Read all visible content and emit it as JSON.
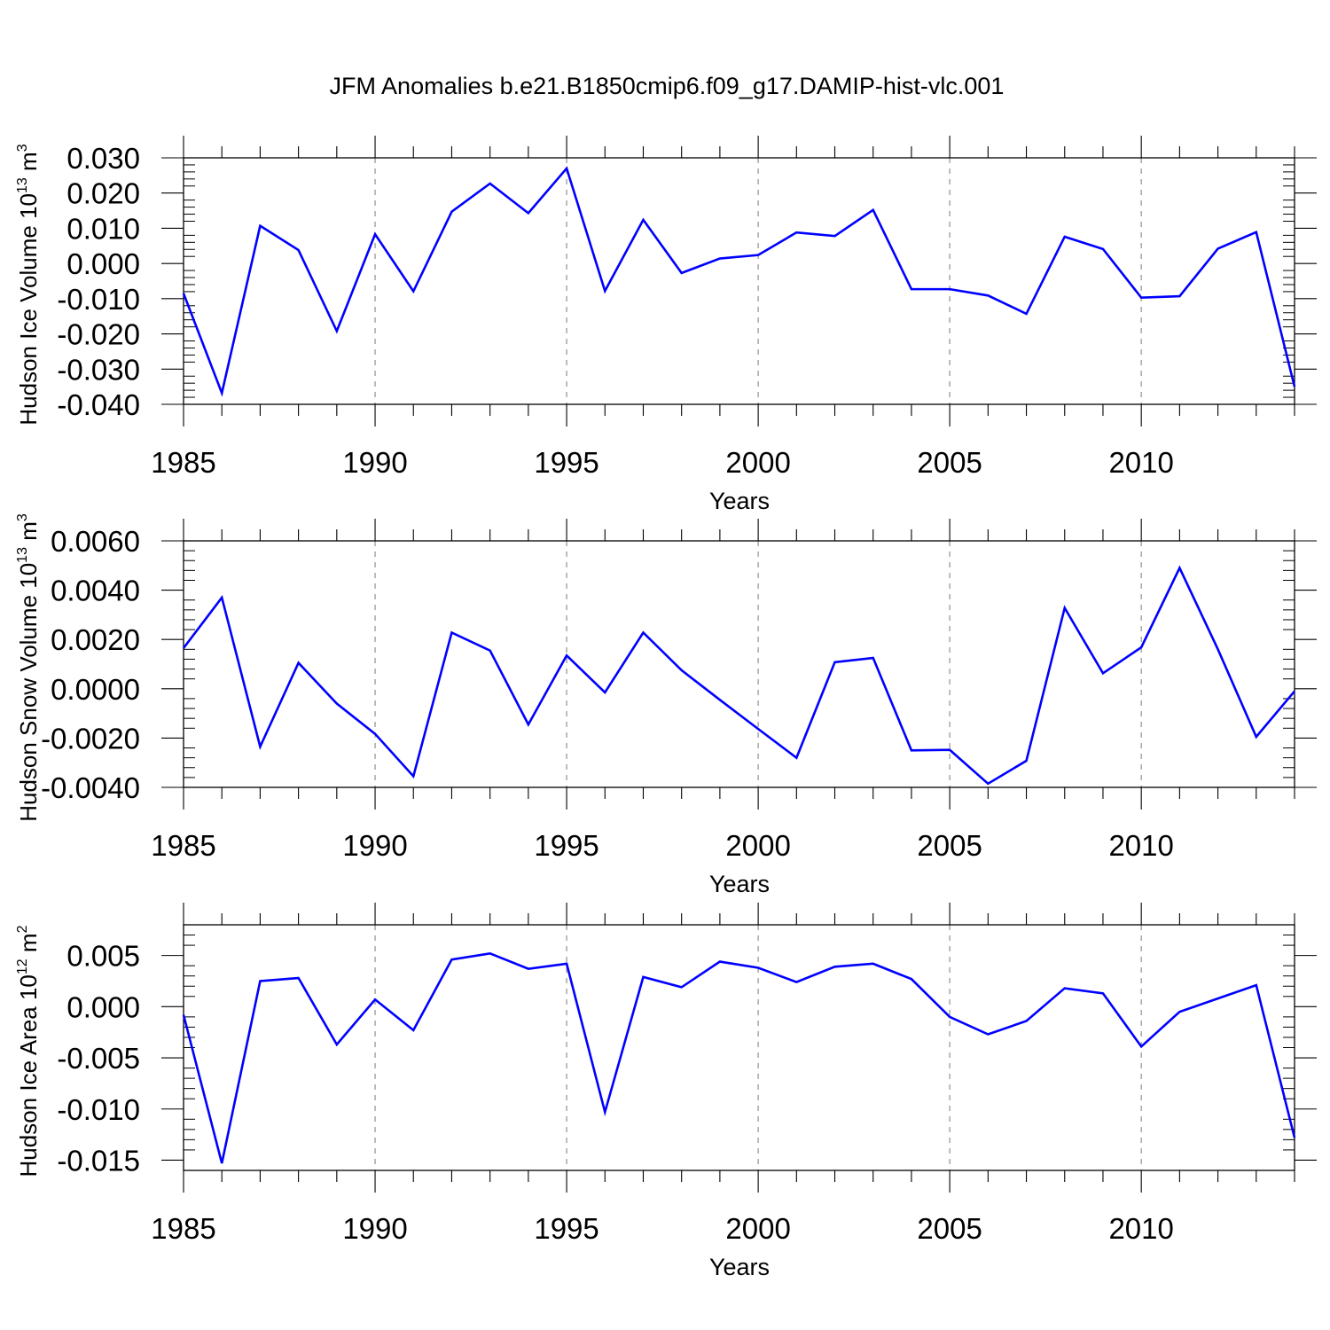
{
  "title": "JFM Anomalies b.e21.B1850cmip6.f09_g17.DAMIP-hist-vlc.001",
  "chart_data": [
    {
      "type": "line",
      "ylabel": {
        "prefix": "Hudson Ice Volume 10",
        "exponent": "13",
        "unit": " m",
        "unit_exponent": "3"
      },
      "xlabel": "Years",
      "xlim": [
        1985,
        2014
      ],
      "ylim": [
        -0.04,
        0.03
      ],
      "yticks": [
        -0.04,
        -0.03,
        -0.02,
        -0.01,
        0.0,
        0.01,
        0.02,
        0.03
      ],
      "ytick_labels": [
        "-0.040",
        "-0.030",
        "-0.020",
        "-0.010",
        "0.000",
        "0.010",
        "0.020",
        "0.030"
      ],
      "xticks": [
        1985,
        1990,
        1995,
        2000,
        2005,
        2010
      ],
      "xtick_labels": [
        "1985",
        "1990",
        "1995",
        "2000",
        "2005",
        "2010"
      ],
      "grid": "vertical dashed at major x ticks",
      "color": "#0000ff",
      "x": [
        1985,
        1986,
        1987,
        1988,
        1989,
        1990,
        1991,
        1992,
        1993,
        1994,
        1995,
        1996,
        1997,
        1998,
        1999,
        2000,
        2001,
        2002,
        2003,
        2004,
        2005,
        2006,
        2007,
        2008,
        2009,
        2010,
        2011,
        2012,
        2013,
        2014
      ],
      "values": [
        -0.0085,
        -0.0368,
        0.0107,
        0.0038,
        -0.0192,
        0.0083,
        -0.0079,
        0.0147,
        0.0227,
        0.0143,
        0.027,
        -0.0078,
        0.0124,
        -0.0027,
        0.0014,
        0.0024,
        0.0088,
        0.0078,
        0.0152,
        -0.0073,
        -0.0073,
        -0.0091,
        -0.0143,
        0.0076,
        0.0041,
        -0.0097,
        -0.0093,
        0.0042,
        0.0089,
        -0.035
      ]
    },
    {
      "type": "line",
      "ylabel": {
        "prefix": "Hudson Snow Volume 10",
        "exponent": "13",
        "unit": " m",
        "unit_exponent": "3"
      },
      "xlabel": "Years",
      "xlim": [
        1985,
        2014
      ],
      "ylim": [
        -0.004,
        0.006
      ],
      "yticks": [
        -0.004,
        -0.002,
        0.0,
        0.002,
        0.004,
        0.006
      ],
      "ytick_labels": [
        "-0.0040",
        "-0.0020",
        "0.0000",
        "0.0020",
        "0.0040",
        "0.0060"
      ],
      "xticks": [
        1985,
        1990,
        1995,
        2000,
        2005,
        2010
      ],
      "xtick_labels": [
        "1985",
        "1990",
        "1995",
        "2000",
        "2005",
        "2010"
      ],
      "grid": "vertical dashed at major x ticks",
      "color": "#0000ff",
      "x": [
        1985,
        1986,
        1987,
        1988,
        1989,
        1990,
        1991,
        1992,
        1993,
        1994,
        1995,
        1996,
        1997,
        1998,
        1999,
        2000,
        2001,
        2002,
        2003,
        2004,
        2005,
        2006,
        2007,
        2008,
        2009,
        2010,
        2011,
        2012,
        2013,
        2014
      ],
      "values": [
        0.00165,
        0.0037,
        -0.00235,
        0.00105,
        -0.0006,
        -0.00183,
        -0.00355,
        0.00228,
        0.00155,
        -0.00145,
        0.00135,
        -0.00015,
        0.00228,
        0.00075,
        -0.00045,
        -0.00163,
        -0.0028,
        0.00108,
        0.00125,
        -0.0025,
        -0.00248,
        -0.00385,
        -0.00292,
        0.00328,
        0.00063,
        0.00168,
        0.0049,
        0.0016,
        -0.00195,
        -0.0001
      ]
    },
    {
      "type": "line",
      "ylabel": {
        "prefix": "Hudson Ice Area 10",
        "exponent": "12",
        "unit": " m",
        "unit_exponent": "2"
      },
      "xlabel": "Years",
      "xlim": [
        1985,
        2014
      ],
      "ylim": [
        -0.016,
        0.008
      ],
      "yticks": [
        -0.015,
        -0.01,
        -0.005,
        0.0,
        0.005
      ],
      "ytick_labels": [
        "-0.015",
        "-0.010",
        "-0.005",
        "0.000",
        "0.005"
      ],
      "xticks": [
        1985,
        1990,
        1995,
        2000,
        2005,
        2010
      ],
      "xtick_labels": [
        "1985",
        "1990",
        "1995",
        "2000",
        "2005",
        "2010"
      ],
      "grid": "vertical dashed at major x ticks",
      "color": "#0000ff",
      "x": [
        1985,
        1986,
        1987,
        1988,
        1989,
        1990,
        1991,
        1992,
        1993,
        1994,
        1995,
        1996,
        1997,
        1998,
        1999,
        2000,
        2001,
        2002,
        2003,
        2004,
        2005,
        2006,
        2007,
        2008,
        2009,
        2010,
        2011,
        2012,
        2013,
        2014
      ],
      "values": [
        -0.0008,
        -0.0153,
        0.0025,
        0.0028,
        -0.0037,
        0.0007,
        -0.0023,
        0.0046,
        0.0052,
        0.0037,
        0.0042,
        -0.0103,
        0.0029,
        0.0019,
        0.0044,
        0.0038,
        0.0024,
        0.0039,
        0.0042,
        0.0027,
        -0.001,
        -0.0027,
        -0.0014,
        0.0018,
        0.0013,
        -0.0039,
        -0.0005,
        0.0008,
        0.0021,
        -0.0128
      ]
    }
  ]
}
